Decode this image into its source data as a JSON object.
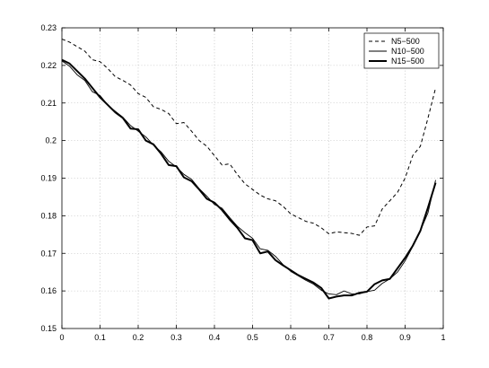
{
  "chart_data": {
    "type": "line",
    "title": "",
    "xlabel": "",
    "ylabel": "",
    "xlim": [
      0,
      1
    ],
    "ylim": [
      0.15,
      0.23
    ],
    "grid": true,
    "legend_position": "top-right",
    "x_ticks": [
      "0",
      "0.1",
      "0.2",
      "0.3",
      "0.4",
      "0.5",
      "0.6",
      "0.7",
      "0.8",
      "0.9",
      "1"
    ],
    "y_ticks": [
      "0.15",
      "0.16",
      "0.17",
      "0.18",
      "0.19",
      "0.2",
      "0.21",
      "0.22",
      "0.23"
    ],
    "x": [
      0,
      0.02,
      0.04,
      0.06,
      0.08,
      0.1,
      0.12,
      0.14,
      0.16,
      0.18,
      0.2,
      0.22,
      0.24,
      0.26,
      0.28,
      0.3,
      0.32,
      0.34,
      0.36,
      0.38,
      0.4,
      0.42,
      0.44,
      0.46,
      0.48,
      0.5,
      0.52,
      0.54,
      0.56,
      0.58,
      0.6,
      0.62,
      0.64,
      0.66,
      0.68,
      0.7,
      0.72,
      0.74,
      0.76,
      0.78,
      0.8,
      0.82,
      0.84,
      0.86,
      0.88,
      0.9,
      0.92,
      0.94,
      0.96,
      0.98
    ],
    "series": [
      {
        "name": "N5−500",
        "style": "dashed",
        "color": "#000000",
        "values": [
          0.227,
          0.2262,
          0.225,
          0.2238,
          0.2215,
          0.221,
          0.2192,
          0.217,
          0.216,
          0.2148,
          0.2125,
          0.2115,
          0.209,
          0.2083,
          0.2072,
          0.2045,
          0.2048,
          0.2025,
          0.2,
          0.1985,
          0.196,
          0.1935,
          0.1938,
          0.191,
          0.1885,
          0.187,
          0.1855,
          0.1845,
          0.184,
          0.1825,
          0.1805,
          0.1795,
          0.1785,
          0.178,
          0.1768,
          0.1752,
          0.1757,
          0.1755,
          0.1753,
          0.1748,
          0.177,
          0.1773,
          0.1818,
          0.184,
          0.1862,
          0.19,
          0.196,
          0.1985,
          0.206,
          0.214
        ]
      },
      {
        "name": "N10−500",
        "style": "solid-thin",
        "color": "#000000",
        "values": [
          0.2212,
          0.2198,
          0.2175,
          0.216,
          0.213,
          0.212,
          0.2095,
          0.2078,
          0.2062,
          0.204,
          0.2025,
          0.201,
          0.1988,
          0.197,
          0.1945,
          0.193,
          0.191,
          0.1897,
          0.1872,
          0.1852,
          0.183,
          0.182,
          0.1795,
          0.1772,
          0.1755,
          0.174,
          0.1712,
          0.1708,
          0.1692,
          0.167,
          0.1652,
          0.164,
          0.1628,
          0.1618,
          0.1602,
          0.1592,
          0.159,
          0.16,
          0.1592,
          0.1592,
          0.1598,
          0.1602,
          0.162,
          0.1632,
          0.165,
          0.168,
          0.1718,
          0.176,
          0.1808,
          0.1895
        ]
      },
      {
        "name": "N15−500",
        "style": "solid-thick",
        "color": "#000000",
        "values": [
          0.2215,
          0.2205,
          0.2185,
          0.2165,
          0.214,
          0.2115,
          0.2095,
          0.2075,
          0.206,
          0.2032,
          0.203,
          0.2,
          0.199,
          0.1965,
          0.1935,
          0.1932,
          0.1902,
          0.1892,
          0.187,
          0.1845,
          0.1835,
          0.1815,
          0.179,
          0.1768,
          0.174,
          0.1735,
          0.17,
          0.1705,
          0.1682,
          0.1668,
          0.1655,
          0.1642,
          0.1632,
          0.1622,
          0.1608,
          0.158,
          0.1585,
          0.1588,
          0.1588,
          0.1595,
          0.1598,
          0.1618,
          0.1628,
          0.1632,
          0.166,
          0.1688,
          0.172,
          0.176,
          0.1822,
          0.1888
        ]
      }
    ]
  }
}
